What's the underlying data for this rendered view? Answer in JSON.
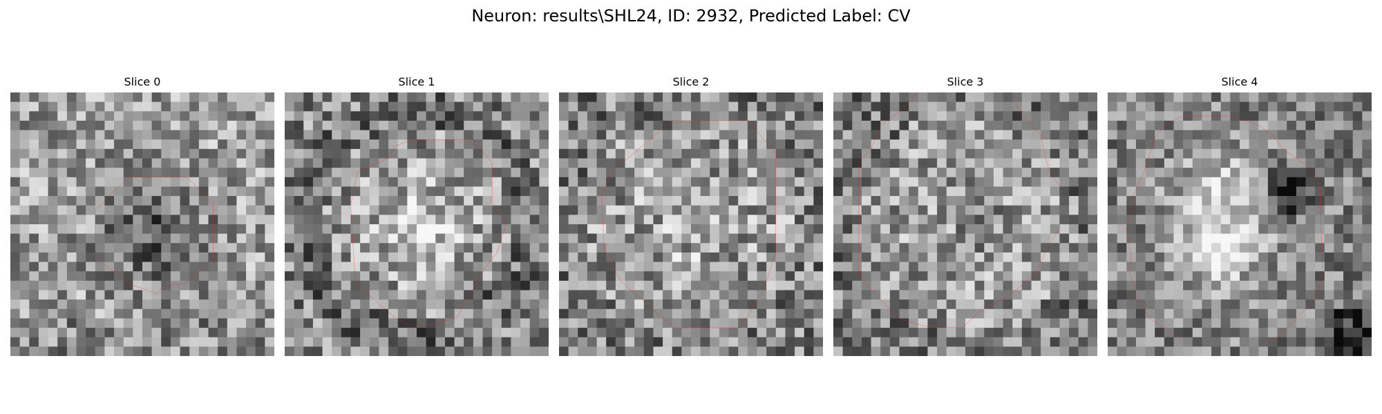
{
  "figure": {
    "title": "Neuron: results\\SHL24, ID: 2932, Predicted Label: CV"
  },
  "colors": {
    "background": "#ffffff",
    "contour": "#ff1a1a",
    "colormap": "grayscale"
  },
  "slices": [
    {
      "title": "Slice 0",
      "image": "grayscale pixelated microscopy patch",
      "overlay": "closed red polygon contour"
    },
    {
      "title": "Slice 1",
      "image": "grayscale pixelated microscopy patch",
      "overlay": "closed red polygon contour"
    },
    {
      "title": "Slice 2",
      "image": "grayscale pixelated microscopy patch",
      "overlay": "closed red polygon contour"
    },
    {
      "title": "Slice 3",
      "image": "grayscale pixelated microscopy patch",
      "overlay": "partially clipped red contour"
    },
    {
      "title": "Slice 4",
      "image": "grayscale pixelated microscopy patch",
      "overlay": "partially clipped red contour"
    }
  ]
}
